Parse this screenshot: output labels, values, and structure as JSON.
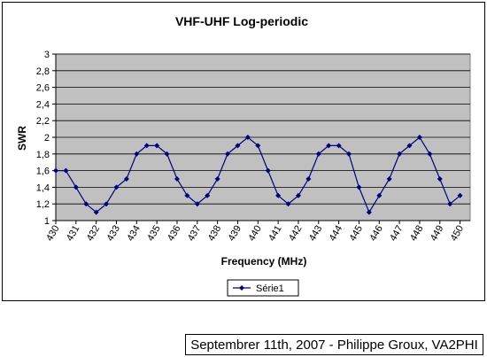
{
  "chart_data": {
    "type": "line",
    "title": "VHF-UHF Log-periodic",
    "xlabel": "Frequency (MHz)",
    "ylabel": "SWR",
    "x_tick_labels": [
      "430",
      "431",
      "432",
      "433",
      "434",
      "435",
      "436",
      "437",
      "438",
      "439",
      "440",
      "441",
      "442",
      "443",
      "444",
      "445",
      "446",
      "447",
      "448",
      "449",
      "450"
    ],
    "y_tick_labels": [
      "1",
      "1,2",
      "1,4",
      "1,6",
      "1,8",
      "2",
      "2,2",
      "2,4",
      "2,6",
      "2,8",
      "3"
    ],
    "ylim": [
      1,
      3
    ],
    "grid": true,
    "legend_position": "bottom",
    "series": [
      {
        "name": "Série1",
        "x": [
          430,
          430.5,
          431,
          431.5,
          432,
          432.5,
          433,
          433.5,
          434,
          434.5,
          435,
          435.5,
          436,
          436.5,
          437,
          437.5,
          438,
          438.5,
          439,
          439.5,
          440,
          440.5,
          441,
          441.5,
          442,
          442.5,
          443,
          443.5,
          444,
          444.5,
          445,
          445.5,
          446,
          446.5,
          447,
          447.5,
          448,
          448.5,
          449,
          449.5,
          450
        ],
        "values": [
          1.6,
          1.6,
          1.4,
          1.2,
          1.1,
          1.2,
          1.4,
          1.5,
          1.8,
          1.9,
          1.9,
          1.8,
          1.5,
          1.3,
          1.2,
          1.3,
          1.5,
          1.8,
          1.9,
          2.0,
          1.9,
          1.6,
          1.3,
          1.2,
          1.3,
          1.5,
          1.8,
          1.9,
          1.9,
          1.8,
          1.4,
          1.1,
          1.3,
          1.5,
          1.8,
          1.9,
          2.0,
          1.8,
          1.5,
          1.2,
          1.3
        ]
      }
    ],
    "colors": {
      "plot_background": "#c0c0c0",
      "line": "#000080",
      "grid": "#000000"
    }
  },
  "caption": "Septembrer 11th, 2007 - Philippe Groux, VA2PHI"
}
